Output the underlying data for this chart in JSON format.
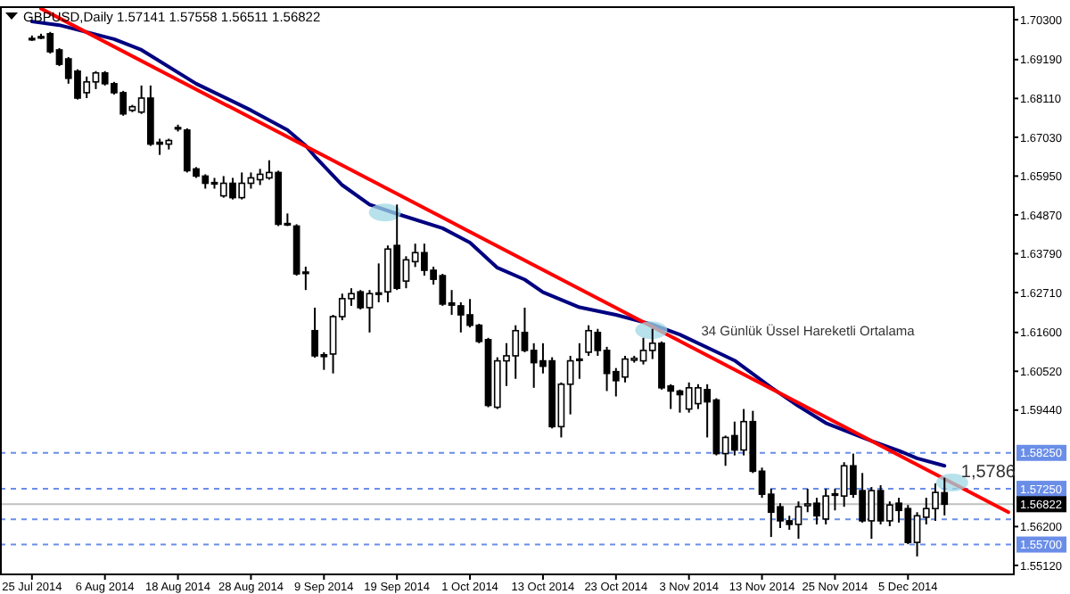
{
  "chart_data": {
    "type": "candlestick",
    "title": "GBPUSD,Daily  1.57141 1.57558 1.56511 1.56822",
    "categories": [
      "25 Jul 2014",
      null,
      null,
      null,
      null,
      null,
      null,
      null,
      "6 Aug 2014",
      null,
      null,
      null,
      null,
      null,
      null,
      null,
      "18 Aug 2014",
      null,
      null,
      null,
      null,
      null,
      null,
      null,
      "28 Aug 2014",
      null,
      null,
      null,
      null,
      null,
      null,
      null,
      "9 Sep 2014",
      null,
      null,
      null,
      null,
      null,
      null,
      null,
      "19 Sep 2014",
      null,
      null,
      null,
      null,
      null,
      null,
      null,
      "1 Oct 2014",
      null,
      null,
      null,
      null,
      null,
      null,
      null,
      "13 Oct 2014",
      null,
      null,
      null,
      null,
      null,
      null,
      null,
      "23 Oct 2014",
      null,
      null,
      null,
      null,
      null,
      null,
      null,
      "3 Nov 2014",
      null,
      null,
      null,
      null,
      null,
      null,
      null,
      "13 Nov 2014",
      null,
      null,
      null,
      null,
      null,
      null,
      null,
      "25 Nov 2014",
      null,
      null,
      null,
      null,
      null,
      null,
      null,
      "5 Dec 2014",
      null,
      null,
      null,
      null,
      null,
      null,
      null,
      null,
      null,
      null,
      null
    ],
    "ylim": [
      1.5487,
      1.7065
    ],
    "yticks": [
      {
        "value": 1.703,
        "label": "1.70300"
      },
      {
        "value": 1.6919,
        "label": "1.69190"
      },
      {
        "value": 1.6811,
        "label": "1.68110"
      },
      {
        "value": 1.6703,
        "label": "1.67030"
      },
      {
        "value": 1.6595,
        "label": "1.65950"
      },
      {
        "value": 1.6487,
        "label": "1.64870"
      },
      {
        "value": 1.6379,
        "label": "1.63790"
      },
      {
        "value": 1.6271,
        "label": "1.62710"
      },
      {
        "value": 1.616,
        "label": "1.61600"
      },
      {
        "value": 1.6052,
        "label": "1.60520"
      },
      {
        "value": 1.5944,
        "label": "1.59440"
      },
      {
        "value": 1.562,
        "label": "1.56200"
      },
      {
        "value": 1.5512,
        "label": "1.55120"
      }
    ],
    "ref_lines": [
      {
        "axis": "y",
        "value": 1.5825,
        "label": "1.58250",
        "color": "#6a8ee8",
        "line_style": "dashed"
      },
      {
        "axis": "y",
        "value": 1.5725,
        "label": "1.57250",
        "color": "#6a8ee8",
        "line_style": "dashed"
      },
      {
        "axis": "y",
        "value": 1.564,
        "color": "#6a8ee8",
        "line_style": "dashed"
      },
      {
        "axis": "y",
        "value": 1.557,
        "label": "1.55700",
        "color": "#6a8ee8",
        "line_style": "dashed"
      },
      {
        "axis": "y",
        "value": 1.56822,
        "label": "1.56822",
        "color": "#c0c0c0",
        "line_style": "solid"
      }
    ],
    "annotations": [
      "34 Günlük Üssel Hareketli Ortalama",
      "1,5786"
    ],
    "ohlc": [
      [
        1.6978,
        1.6986,
        1.6971,
        1.6976
      ],
      [
        1.6983,
        1.6991,
        1.6976,
        1.6982
      ],
      [
        1.6991,
        1.6996,
        1.6936,
        1.6941
      ],
      [
        1.6946,
        1.6951,
        1.6901,
        1.6906
      ],
      [
        1.6921,
        1.6926,
        1.6852,
        1.6867
      ],
      [
        1.6887,
        1.6892,
        1.6808,
        1.6812
      ],
      [
        1.6827,
        1.6872,
        1.6812,
        1.6857
      ],
      [
        1.6857,
        1.6887,
        1.6837,
        1.6882
      ],
      [
        1.6882,
        1.6887,
        1.6847,
        1.6852
      ],
      [
        1.6852,
        1.6857,
        1.6822,
        1.6827
      ],
      [
        1.6827,
        1.6832,
        1.6763,
        1.6768
      ],
      [
        1.6778,
        1.6793,
        1.6773,
        1.6788
      ],
      [
        1.6773,
        1.6847,
        1.6768,
        1.6812
      ],
      [
        1.6812,
        1.6847,
        1.6679,
        1.6684
      ],
      [
        1.6689,
        1.6699,
        1.6654,
        1.6684
      ],
      [
        1.6684,
        1.6699,
        1.6669,
        1.6694
      ],
      [
        1.6726,
        1.6738,
        1.6719,
        1.673
      ],
      [
        1.6723,
        1.6728,
        1.6605,
        1.661
      ],
      [
        1.6615,
        1.662,
        1.659,
        1.6595
      ],
      [
        1.6595,
        1.66,
        1.656,
        1.6575
      ],
      [
        1.6577,
        1.659,
        1.656,
        1.6573
      ],
      [
        1.654,
        1.6595,
        1.6535,
        1.6575
      ],
      [
        1.6575,
        1.659,
        1.653,
        1.6535
      ],
      [
        1.6535,
        1.6605,
        1.653,
        1.6575
      ],
      [
        1.6575,
        1.6605,
        1.656,
        1.659
      ],
      [
        1.6585,
        1.6615,
        1.657,
        1.66
      ],
      [
        1.659,
        1.6639,
        1.6585,
        1.6605
      ],
      [
        1.6605,
        1.661,
        1.6456,
        1.6461
      ],
      [
        1.6463,
        1.6491,
        1.6456,
        1.6459
      ],
      [
        1.6456,
        1.6461,
        1.6318,
        1.6323
      ],
      [
        1.6328,
        1.6343,
        1.6278,
        1.6326
      ],
      [
        1.6165,
        1.6229,
        1.609,
        1.6095
      ],
      [
        1.6098,
        1.6105,
        1.6056,
        1.6093
      ],
      [
        1.61,
        1.6209,
        1.6046,
        1.6204
      ],
      [
        1.6204,
        1.6268,
        1.6194,
        1.6254
      ],
      [
        1.6254,
        1.6283,
        1.6234,
        1.6268
      ],
      [
        1.6273,
        1.6278,
        1.6224,
        1.6229
      ],
      [
        1.6229,
        1.6278,
        1.616,
        1.6268
      ],
      [
        1.6266,
        1.6352,
        1.6244,
        1.627
      ],
      [
        1.6273,
        1.6402,
        1.6244,
        1.6392
      ],
      [
        1.6402,
        1.6516,
        1.6278,
        1.6283
      ],
      [
        1.6303,
        1.6372,
        1.6283,
        1.6362
      ],
      [
        1.6357,
        1.6407,
        1.6342,
        1.6382
      ],
      [
        1.6382,
        1.6407,
        1.6318,
        1.6333
      ],
      [
        1.6333,
        1.6343,
        1.6293,
        1.6308
      ],
      [
        1.6318,
        1.6323,
        1.6234,
        1.6239
      ],
      [
        1.6242,
        1.6278,
        1.6209,
        1.6236
      ],
      [
        1.6234,
        1.6244,
        1.616,
        1.6209
      ],
      [
        1.6209,
        1.6253,
        1.6174,
        1.618
      ],
      [
        1.618,
        1.6184,
        1.613,
        1.6135
      ],
      [
        1.614,
        1.6145,
        1.5952,
        1.5957
      ],
      [
        1.5952,
        1.6091,
        1.5947,
        1.6081
      ],
      [
        1.6081,
        1.613,
        1.6011,
        1.6095
      ],
      [
        1.6095,
        1.618,
        1.6031,
        1.6165
      ],
      [
        1.616,
        1.6229,
        1.6105,
        1.611
      ],
      [
        1.611,
        1.613,
        1.6006,
        1.6076
      ],
      [
        1.6081,
        1.613,
        1.6046,
        1.6066
      ],
      [
        1.6081,
        1.6091,
        1.5893,
        1.5898
      ],
      [
        1.5898,
        1.6021,
        1.5868,
        1.6016
      ],
      [
        1.6016,
        1.6095,
        1.5932,
        1.6081
      ],
      [
        1.6083,
        1.613,
        1.6031,
        1.6086
      ],
      [
        1.6105,
        1.618,
        1.6095,
        1.6165
      ],
      [
        1.616,
        1.617,
        1.6095,
        1.611
      ],
      [
        1.611,
        1.612,
        1.5997,
        1.6046
      ],
      [
        1.6051,
        1.6061,
        1.5982,
        1.6026
      ],
      [
        1.6036,
        1.6095,
        1.6021,
        1.6086
      ],
      [
        1.6083,
        1.6095,
        1.6076,
        1.6088
      ],
      [
        1.6081,
        1.6145,
        1.6071,
        1.611
      ],
      [
        1.611,
        1.617,
        1.6086,
        1.613
      ],
      [
        1.613,
        1.6135,
        1.6001,
        1.6006
      ],
      [
        1.6011,
        1.6016,
        1.5947,
        1.5997
      ],
      [
        1.5997,
        1.6001,
        1.5937,
        1.5987
      ],
      [
        1.5947,
        1.6021,
        1.5937,
        1.6006
      ],
      [
        1.5962,
        1.6016,
        1.5947,
        1.6006
      ],
      [
        1.6001,
        1.6016,
        1.5868,
        1.5967
      ],
      [
        1.5972,
        1.5977,
        1.5818,
        1.5823
      ],
      [
        1.5823,
        1.5873,
        1.5789,
        1.5868
      ],
      [
        1.5873,
        1.5912,
        1.5818,
        1.5833
      ],
      [
        1.5833,
        1.5947,
        1.5818,
        1.5912
      ],
      [
        1.5912,
        1.5942,
        1.5769,
        1.5774
      ],
      [
        1.5774,
        1.5784,
        1.57,
        1.571
      ],
      [
        1.571,
        1.5725,
        1.5591,
        1.566
      ],
      [
        1.5675,
        1.5685,
        1.5616,
        1.5636
      ],
      [
        1.5636,
        1.565,
        1.5611,
        1.5626
      ],
      [
        1.5626,
        1.569,
        1.5586,
        1.5675
      ],
      [
        1.5678,
        1.5725,
        1.566,
        1.5683
      ],
      [
        1.5685,
        1.57,
        1.5626,
        1.565
      ],
      [
        1.5641,
        1.5725,
        1.5626,
        1.5705
      ],
      [
        1.5708,
        1.5725,
        1.5665,
        1.5711
      ],
      [
        1.5705,
        1.5799,
        1.5675,
        1.5789
      ],
      [
        1.5789,
        1.5823,
        1.57,
        1.571
      ],
      [
        1.572,
        1.5769,
        1.5631,
        1.5636
      ],
      [
        1.5636,
        1.573,
        1.5586,
        1.572
      ],
      [
        1.572,
        1.5735,
        1.5626,
        1.5636
      ],
      [
        1.5636,
        1.569,
        1.5621,
        1.568
      ],
      [
        1.5685,
        1.57,
        1.5631,
        1.5665
      ],
      [
        1.567,
        1.568,
        1.5571,
        1.5576
      ],
      [
        1.5576,
        1.566,
        1.5537,
        1.565
      ],
      [
        1.5646,
        1.57,
        1.5626,
        1.567
      ],
      [
        1.567,
        1.574,
        1.5636,
        1.5715
      ],
      [
        1.57141,
        1.57558,
        1.56511,
        1.56822
      ],
      null,
      null,
      null,
      null,
      null,
      null,
      null
    ],
    "series": [
      {
        "type": "line",
        "color": "#000080",
        "values": [
          1.7025,
          null,
          null,
          1.7015,
          null,
          null,
          null,
          null,
          null,
          1.6976,
          null,
          null,
          1.6946,
          null,
          null,
          null,
          null,
          null,
          1.6852,
          null,
          null,
          null,
          null,
          null,
          1.6778,
          null,
          null,
          null,
          1.6723,
          null,
          1.668,
          1.665,
          null,
          null,
          1.657,
          null,
          null,
          1.6516,
          null,
          null,
          1.649,
          null,
          null,
          null,
          null,
          1.645,
          null,
          null,
          1.641,
          null,
          null,
          1.634,
          null,
          null,
          1.6307,
          null,
          1.6272,
          null,
          null,
          null,
          1.623,
          null,
          null,
          null,
          1.6209,
          null,
          null,
          null,
          1.6182,
          null,
          null,
          1.6154,
          null,
          null,
          null,
          1.6106,
          null,
          1.6082,
          null,
          null,
          null,
          1.6007,
          null,
          null,
          1.5955,
          null,
          null,
          1.5908,
          null,
          null,
          null,
          null,
          1.5858,
          null,
          null,
          1.5831,
          null,
          1.581,
          null,
          null,
          1.5789,
          null,
          null,
          null,
          null,
          null,
          null,
          null
        ]
      },
      {
        "type": "line",
        "color": "#ff0000",
        "values": [
          null,
          1.7061,
          null,
          null,
          null,
          null,
          null,
          null,
          null,
          null,
          null,
          null,
          null,
          null,
          null,
          null,
          null,
          null,
          null,
          null,
          null,
          null,
          null,
          null,
          null,
          null,
          null,
          null,
          null,
          null,
          null,
          null,
          null,
          null,
          null,
          null,
          null,
          null,
          null,
          null,
          null,
          null,
          null,
          null,
          null,
          null,
          null,
          null,
          null,
          null,
          null,
          null,
          null,
          null,
          null,
          null,
          null,
          null,
          null,
          null,
          null,
          null,
          null,
          null,
          null,
          null,
          null,
          null,
          null,
          null,
          null,
          null,
          null,
          null,
          null,
          null,
          null,
          null,
          null,
          null,
          null,
          null,
          null,
          null,
          null,
          null,
          null,
          null,
          null,
          null,
          null,
          null,
          null,
          null,
          null,
          null,
          null,
          null,
          null,
          null,
          null,
          null,
          null,
          null,
          null,
          null,
          null,
          1.566
        ]
      }
    ]
  }
}
